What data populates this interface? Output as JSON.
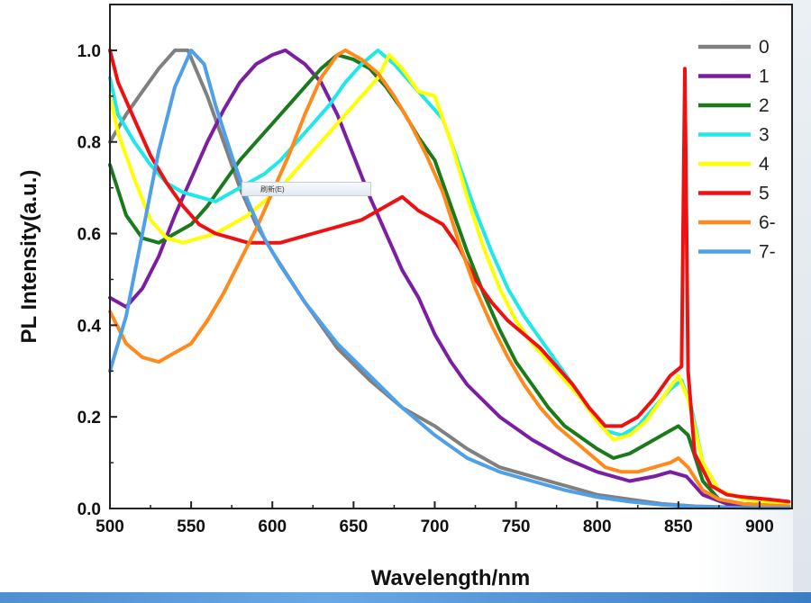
{
  "chart_data": {
    "type": "line",
    "xlabel": "Wavelength/nm",
    "ylabel": "PL Intensity(a.u.)",
    "xlim": [
      500,
      920
    ],
    "ylim": [
      0,
      1.1
    ],
    "x_ticks": [
      "500",
      "550",
      "600",
      "650",
      "700",
      "750",
      "800",
      "850",
      "900"
    ],
    "y_ticks": [
      "0.0",
      "0.2",
      "0.4",
      "0.6",
      "0.8",
      "1.0"
    ],
    "legend_position": "top-right",
    "series": [
      {
        "name": "0",
        "color": "#808080",
        "points": [
          [
            500,
            0.8
          ],
          [
            510,
            0.86
          ],
          [
            520,
            0.91
          ],
          [
            530,
            0.96
          ],
          [
            540,
            1.0
          ],
          [
            548,
            1.0
          ],
          [
            560,
            0.9
          ],
          [
            570,
            0.8
          ],
          [
            580,
            0.7
          ],
          [
            590,
            0.62
          ],
          [
            600,
            0.56
          ],
          [
            620,
            0.45
          ],
          [
            640,
            0.35
          ],
          [
            660,
            0.28
          ],
          [
            680,
            0.22
          ],
          [
            700,
            0.18
          ],
          [
            720,
            0.13
          ],
          [
            740,
            0.09
          ],
          [
            760,
            0.07
          ],
          [
            780,
            0.05
          ],
          [
            800,
            0.03
          ],
          [
            820,
            0.02
          ],
          [
            840,
            0.01
          ],
          [
            860,
            0.005
          ],
          [
            880,
            0.003
          ],
          [
            900,
            0.002
          ],
          [
            918,
            0.001
          ]
        ]
      },
      {
        "name": "1",
        "color": "#7b1fa2",
        "points": [
          [
            500,
            0.46
          ],
          [
            510,
            0.44
          ],
          [
            520,
            0.48
          ],
          [
            530,
            0.55
          ],
          [
            540,
            0.64
          ],
          [
            550,
            0.72
          ],
          [
            560,
            0.8
          ],
          [
            570,
            0.87
          ],
          [
            580,
            0.93
          ],
          [
            590,
            0.97
          ],
          [
            600,
            0.99
          ],
          [
            608,
            1.0
          ],
          [
            620,
            0.97
          ],
          [
            630,
            0.93
          ],
          [
            640,
            0.86
          ],
          [
            650,
            0.77
          ],
          [
            660,
            0.68
          ],
          [
            670,
            0.6
          ],
          [
            680,
            0.52
          ],
          [
            690,
            0.46
          ],
          [
            700,
            0.38
          ],
          [
            710,
            0.32
          ],
          [
            720,
            0.27
          ],
          [
            740,
            0.2
          ],
          [
            760,
            0.15
          ],
          [
            780,
            0.11
          ],
          [
            800,
            0.08
          ],
          [
            820,
            0.06
          ],
          [
            835,
            0.07
          ],
          [
            845,
            0.08
          ],
          [
            855,
            0.07
          ],
          [
            865,
            0.03
          ],
          [
            880,
            0.01
          ],
          [
            900,
            0.005
          ],
          [
            918,
            0.003
          ]
        ]
      },
      {
        "name": "2",
        "color": "#1b7a1b",
        "points": [
          [
            500,
            0.75
          ],
          [
            510,
            0.64
          ],
          [
            520,
            0.59
          ],
          [
            530,
            0.58
          ],
          [
            540,
            0.6
          ],
          [
            550,
            0.62
          ],
          [
            560,
            0.66
          ],
          [
            570,
            0.71
          ],
          [
            580,
            0.76
          ],
          [
            590,
            0.8
          ],
          [
            600,
            0.84
          ],
          [
            610,
            0.88
          ],
          [
            620,
            0.92
          ],
          [
            630,
            0.96
          ],
          [
            640,
            0.99
          ],
          [
            650,
            0.98
          ],
          [
            660,
            0.96
          ],
          [
            670,
            0.92
          ],
          [
            680,
            0.87
          ],
          [
            690,
            0.81
          ],
          [
            700,
            0.76
          ],
          [
            710,
            0.66
          ],
          [
            720,
            0.56
          ],
          [
            730,
            0.47
          ],
          [
            740,
            0.39
          ],
          [
            750,
            0.32
          ],
          [
            760,
            0.27
          ],
          [
            770,
            0.22
          ],
          [
            780,
            0.18
          ],
          [
            800,
            0.13
          ],
          [
            810,
            0.11
          ],
          [
            820,
            0.12
          ],
          [
            830,
            0.14
          ],
          [
            840,
            0.16
          ],
          [
            850,
            0.18
          ],
          [
            856,
            0.16
          ],
          [
            865,
            0.06
          ],
          [
            875,
            0.02
          ],
          [
            890,
            0.01
          ],
          [
            918,
            0.005
          ]
        ]
      },
      {
        "name": "3",
        "color": "#20e8e8",
        "points": [
          [
            500,
            0.94
          ],
          [
            505,
            0.86
          ],
          [
            515,
            0.8
          ],
          [
            525,
            0.75
          ],
          [
            535,
            0.71
          ],
          [
            545,
            0.69
          ],
          [
            555,
            0.68
          ],
          [
            565,
            0.67
          ],
          [
            575,
            0.69
          ],
          [
            585,
            0.71
          ],
          [
            595,
            0.73
          ],
          [
            605,
            0.76
          ],
          [
            615,
            0.8
          ],
          [
            625,
            0.84
          ],
          [
            635,
            0.88
          ],
          [
            645,
            0.93
          ],
          [
            655,
            0.97
          ],
          [
            665,
            1.0
          ],
          [
            675,
            0.97
          ],
          [
            685,
            0.93
          ],
          [
            695,
            0.89
          ],
          [
            705,
            0.85
          ],
          [
            715,
            0.75
          ],
          [
            725,
            0.65
          ],
          [
            735,
            0.56
          ],
          [
            745,
            0.48
          ],
          [
            755,
            0.42
          ],
          [
            765,
            0.37
          ],
          [
            775,
            0.32
          ],
          [
            785,
            0.27
          ],
          [
            795,
            0.22
          ],
          [
            805,
            0.17
          ],
          [
            815,
            0.16
          ],
          [
            825,
            0.18
          ],
          [
            835,
            0.22
          ],
          [
            845,
            0.26
          ],
          [
            852,
            0.28
          ],
          [
            858,
            0.22
          ],
          [
            865,
            0.1
          ],
          [
            875,
            0.04
          ],
          [
            890,
            0.02
          ],
          [
            918,
            0.01
          ]
        ]
      },
      {
        "name": "4",
        "color": "#ffff00",
        "points": [
          [
            500,
            0.9
          ],
          [
            505,
            0.82
          ],
          [
            515,
            0.72
          ],
          [
            525,
            0.63
          ],
          [
            535,
            0.59
          ],
          [
            545,
            0.58
          ],
          [
            555,
            0.59
          ],
          [
            565,
            0.6
          ],
          [
            575,
            0.62
          ],
          [
            585,
            0.64
          ],
          [
            595,
            0.67
          ],
          [
            605,
            0.7
          ],
          [
            615,
            0.74
          ],
          [
            625,
            0.78
          ],
          [
            635,
            0.82
          ],
          [
            645,
            0.86
          ],
          [
            655,
            0.9
          ],
          [
            665,
            0.94
          ],
          [
            672,
            0.99
          ],
          [
            680,
            0.96
          ],
          [
            690,
            0.91
          ],
          [
            700,
            0.9
          ],
          [
            710,
            0.8
          ],
          [
            720,
            0.68
          ],
          [
            730,
            0.57
          ],
          [
            740,
            0.48
          ],
          [
            750,
            0.41
          ],
          [
            760,
            0.36
          ],
          [
            770,
            0.32
          ],
          [
            780,
            0.28
          ],
          [
            790,
            0.24
          ],
          [
            800,
            0.19
          ],
          [
            810,
            0.15
          ],
          [
            820,
            0.16
          ],
          [
            830,
            0.19
          ],
          [
            840,
            0.24
          ],
          [
            850,
            0.29
          ],
          [
            856,
            0.24
          ],
          [
            865,
            0.1
          ],
          [
            875,
            0.04
          ],
          [
            890,
            0.02
          ],
          [
            918,
            0.01
          ]
        ]
      },
      {
        "name": "5",
        "color": "#ee1111",
        "points": [
          [
            500,
            1.0
          ],
          [
            505,
            0.93
          ],
          [
            515,
            0.85
          ],
          [
            525,
            0.77
          ],
          [
            535,
            0.71
          ],
          [
            545,
            0.66
          ],
          [
            555,
            0.62
          ],
          [
            565,
            0.6
          ],
          [
            575,
            0.59
          ],
          [
            585,
            0.58
          ],
          [
            595,
            0.58
          ],
          [
            605,
            0.58
          ],
          [
            615,
            0.59
          ],
          [
            625,
            0.6
          ],
          [
            635,
            0.61
          ],
          [
            645,
            0.62
          ],
          [
            655,
            0.63
          ],
          [
            665,
            0.65
          ],
          [
            675,
            0.67
          ],
          [
            680,
            0.68
          ],
          [
            690,
            0.65
          ],
          [
            700,
            0.63
          ],
          [
            705,
            0.62
          ],
          [
            715,
            0.57
          ],
          [
            725,
            0.5
          ],
          [
            735,
            0.45
          ],
          [
            745,
            0.41
          ],
          [
            755,
            0.38
          ],
          [
            765,
            0.35
          ],
          [
            775,
            0.31
          ],
          [
            785,
            0.27
          ],
          [
            795,
            0.22
          ],
          [
            805,
            0.18
          ],
          [
            815,
            0.18
          ],
          [
            825,
            0.2
          ],
          [
            835,
            0.24
          ],
          [
            845,
            0.29
          ],
          [
            852,
            0.31
          ],
          [
            854,
            0.96
          ],
          [
            856,
            0.3
          ],
          [
            860,
            0.12
          ],
          [
            870,
            0.05
          ],
          [
            880,
            0.03
          ],
          [
            890,
            0.025
          ],
          [
            905,
            0.02
          ],
          [
            918,
            0.015
          ]
        ]
      },
      {
        "name": "6-",
        "color": "#ff8a1c",
        "points": [
          [
            500,
            0.43
          ],
          [
            510,
            0.36
          ],
          [
            520,
            0.33
          ],
          [
            530,
            0.32
          ],
          [
            540,
            0.34
          ],
          [
            550,
            0.36
          ],
          [
            560,
            0.41
          ],
          [
            570,
            0.47
          ],
          [
            580,
            0.54
          ],
          [
            590,
            0.61
          ],
          [
            600,
            0.69
          ],
          [
            610,
            0.77
          ],
          [
            620,
            0.86
          ],
          [
            630,
            0.94
          ],
          [
            640,
            0.99
          ],
          [
            645,
            1.0
          ],
          [
            655,
            0.98
          ],
          [
            665,
            0.95
          ],
          [
            675,
            0.9
          ],
          [
            685,
            0.84
          ],
          [
            695,
            0.77
          ],
          [
            705,
            0.69
          ],
          [
            715,
            0.58
          ],
          [
            725,
            0.48
          ],
          [
            735,
            0.4
          ],
          [
            745,
            0.33
          ],
          [
            755,
            0.27
          ],
          [
            765,
            0.22
          ],
          [
            775,
            0.18
          ],
          [
            785,
            0.15
          ],
          [
            795,
            0.12
          ],
          [
            805,
            0.09
          ],
          [
            815,
            0.08
          ],
          [
            825,
            0.08
          ],
          [
            835,
            0.09
          ],
          [
            845,
            0.1
          ],
          [
            850,
            0.11
          ],
          [
            856,
            0.09
          ],
          [
            865,
            0.04
          ],
          [
            875,
            0.02
          ],
          [
            890,
            0.01
          ],
          [
            918,
            0.005
          ]
        ]
      },
      {
        "name": "7-",
        "color": "#4fa0e8",
        "points": [
          [
            500,
            0.3
          ],
          [
            510,
            0.42
          ],
          [
            520,
            0.6
          ],
          [
            530,
            0.78
          ],
          [
            540,
            0.92
          ],
          [
            550,
            1.0
          ],
          [
            558,
            0.97
          ],
          [
            565,
            0.88
          ],
          [
            575,
            0.77
          ],
          [
            585,
            0.67
          ],
          [
            595,
            0.59
          ],
          [
            605,
            0.53
          ],
          [
            620,
            0.45
          ],
          [
            640,
            0.36
          ],
          [
            660,
            0.29
          ],
          [
            680,
            0.22
          ],
          [
            700,
            0.16
          ],
          [
            720,
            0.11
          ],
          [
            740,
            0.08
          ],
          [
            760,
            0.06
          ],
          [
            780,
            0.04
          ],
          [
            800,
            0.025
          ],
          [
            820,
            0.015
          ],
          [
            840,
            0.008
          ],
          [
            860,
            0.004
          ],
          [
            880,
            0.002
          ],
          [
            900,
            0.001
          ],
          [
            918,
            0.001
          ]
        ]
      }
    ]
  },
  "popup": {
    "label": "刷新(E)"
  }
}
